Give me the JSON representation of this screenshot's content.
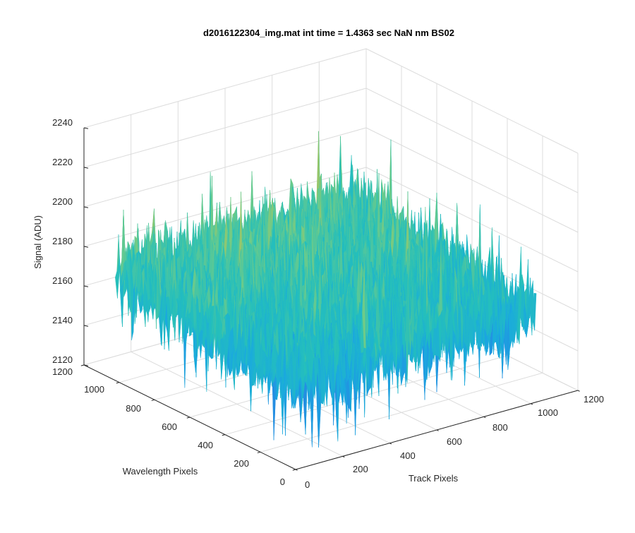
{
  "chart_data": {
    "type": "surface",
    "title": "d2016122304_img.mat int time = 1.4363 sec  NaN nm BS02",
    "xlabel": "Track Pixels",
    "ylabel": "Wavelength Pixels",
    "zlabel": "Signal (ADU)",
    "xlim": [
      0,
      1200
    ],
    "ylim": [
      0,
      1200
    ],
    "zlim": [
      2120,
      2240
    ],
    "x_ticks": [
      0,
      200,
      400,
      600,
      800,
      1000,
      1200
    ],
    "y_ticks": [
      0,
      200,
      400,
      600,
      800,
      1000,
      1200
    ],
    "z_ticks": [
      2120,
      2140,
      2160,
      2180,
      2200,
      2220,
      2240
    ],
    "x_tick_labels": [
      "0",
      "200",
      "400",
      "600",
      "800",
      "1000",
      "1200"
    ],
    "y_tick_labels": [
      "0",
      "200",
      "400",
      "600",
      "800",
      "1000",
      "1200"
    ],
    "z_tick_labels": [
      "2120",
      "2140",
      "2160",
      "2180",
      "2200",
      "2220",
      "2240"
    ],
    "data_extent": {
      "x": [
        1,
        1024
      ],
      "y": [
        1,
        1024
      ]
    },
    "approx_mean_signal": 2165,
    "approx_signal_range": [
      2125,
      2232
    ],
    "colormap": "parula",
    "colormap_stops": [
      "#3e26a8",
      "#2c7ae4",
      "#1aa9df",
      "#24bfbc",
      "#6ccb8a",
      "#c4c24b",
      "#f4c739"
    ],
    "grid": true,
    "view": "3d"
  }
}
